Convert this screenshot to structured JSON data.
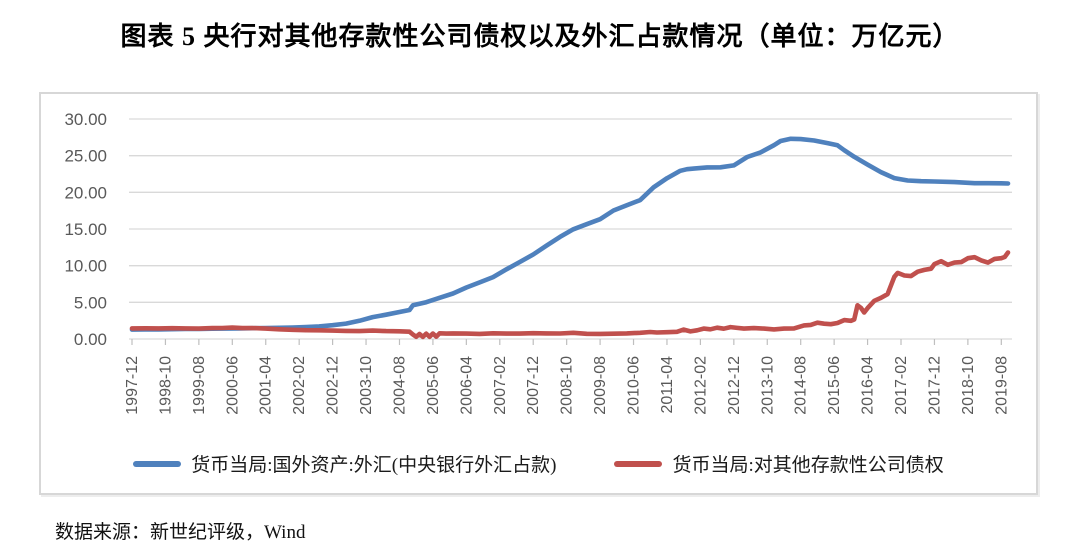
{
  "title": "图表 5  央行对其他存款性公司债权以及外汇占款情况（单位：万亿元）",
  "source_note": "数据来源：新世纪评级，Wind",
  "chart_data": {
    "type": "line",
    "title": "央行对其他存款性公司债权以及外汇占款情况",
    "unit": "万亿元",
    "grid": true,
    "legend_position": "bottom",
    "colors": {
      "grid": "#d9d9d9",
      "axis": "#bfbfbf",
      "tick_text": "#595959",
      "border": "#d7d7d7",
      "background": "#ffffff"
    },
    "y_axis": {
      "min": 0,
      "max": 30,
      "step": 5,
      "tick_labels": [
        "0.00",
        "5.00",
        "10.00",
        "15.00",
        "20.00",
        "25.00",
        "30.00"
      ]
    },
    "x_axis": {
      "start": "1997-12",
      "end": "2019-10",
      "tick_interval_months": 10,
      "label_rotation": -90,
      "tick_labels": [
        "1997-12",
        "1998-10",
        "1999-08",
        "2000-06",
        "2001-04",
        "2002-02",
        "2002-12",
        "2003-10",
        "2004-08",
        "2005-06",
        "2006-04",
        "2007-02",
        "2007-12",
        "2008-10",
        "2009-08",
        "2010-06",
        "2011-04",
        "2012-02",
        "2012-12",
        "2013-10",
        "2014-08",
        "2015-06",
        "2016-04",
        "2017-02",
        "2017-12",
        "2018-10",
        "2019-08"
      ]
    },
    "series": [
      {
        "name": "货币当局:国外资产:外汇(中央银行外汇占款)",
        "color": "#4F81BD",
        "points": [
          [
            "1997-12",
            1.28
          ],
          [
            "1998-04",
            1.3
          ],
          [
            "1998-08",
            1.31
          ],
          [
            "1998-12",
            1.34
          ],
          [
            "1999-04",
            1.36
          ],
          [
            "1999-08",
            1.38
          ],
          [
            "1999-12",
            1.41
          ],
          [
            "2000-04",
            1.42
          ],
          [
            "2000-08",
            1.44
          ],
          [
            "2000-12",
            1.47
          ],
          [
            "2001-04",
            1.5
          ],
          [
            "2001-08",
            1.53
          ],
          [
            "2001-12",
            1.57
          ],
          [
            "2002-04",
            1.63
          ],
          [
            "2002-08",
            1.72
          ],
          [
            "2002-12",
            1.88
          ],
          [
            "2003-04",
            2.1
          ],
          [
            "2003-08",
            2.48
          ],
          [
            "2003-12",
            2.98
          ],
          [
            "2004-04",
            3.32
          ],
          [
            "2004-08",
            3.68
          ],
          [
            "2004-11",
            3.95
          ],
          [
            "2004-12",
            4.59
          ],
          [
            "2005-04",
            5.02
          ],
          [
            "2005-08",
            5.62
          ],
          [
            "2005-12",
            6.21
          ],
          [
            "2006-04",
            7.02
          ],
          [
            "2006-08",
            7.72
          ],
          [
            "2006-12",
            8.44
          ],
          [
            "2007-04",
            9.5
          ],
          [
            "2007-08",
            10.5
          ],
          [
            "2007-12",
            11.52
          ],
          [
            "2008-04",
            12.73
          ],
          [
            "2008-08",
            13.92
          ],
          [
            "2008-12",
            14.96
          ],
          [
            "2009-04",
            15.65
          ],
          [
            "2009-08",
            16.34
          ],
          [
            "2009-12",
            17.52
          ],
          [
            "2010-04",
            18.24
          ],
          [
            "2010-08",
            18.94
          ],
          [
            "2010-12",
            20.68
          ],
          [
            "2011-04",
            21.93
          ],
          [
            "2011-08",
            22.93
          ],
          [
            "2011-10",
            23.16
          ],
          [
            "2011-12",
            23.24
          ],
          [
            "2012-04",
            23.4
          ],
          [
            "2012-08",
            23.42
          ],
          [
            "2012-12",
            23.67
          ],
          [
            "2013-04",
            24.82
          ],
          [
            "2013-08",
            25.45
          ],
          [
            "2013-12",
            26.43
          ],
          [
            "2014-02",
            27.0
          ],
          [
            "2014-05",
            27.3
          ],
          [
            "2014-08",
            27.26
          ],
          [
            "2014-12",
            27.07
          ],
          [
            "2015-04",
            26.72
          ],
          [
            "2015-07",
            26.41
          ],
          [
            "2015-09",
            25.75
          ],
          [
            "2015-12",
            24.85
          ],
          [
            "2016-04",
            23.78
          ],
          [
            "2016-08",
            22.76
          ],
          [
            "2016-12",
            21.94
          ],
          [
            "2017-04",
            21.62
          ],
          [
            "2017-08",
            21.52
          ],
          [
            "2017-12",
            21.48
          ],
          [
            "2018-06",
            21.4
          ],
          [
            "2018-12",
            21.25
          ],
          [
            "2019-04",
            21.25
          ],
          [
            "2019-08",
            21.23
          ],
          [
            "2019-10",
            21.2
          ]
        ]
      },
      {
        "name": "货币当局:对其他存款性公司债权",
        "color": "#C0504D",
        "points": [
          [
            "1997-12",
            1.44
          ],
          [
            "1998-04",
            1.46
          ],
          [
            "1998-08",
            1.45
          ],
          [
            "1998-12",
            1.47
          ],
          [
            "1999-04",
            1.44
          ],
          [
            "1999-08",
            1.42
          ],
          [
            "1999-12",
            1.48
          ],
          [
            "2000-03",
            1.5
          ],
          [
            "2000-06",
            1.56
          ],
          [
            "2000-09",
            1.48
          ],
          [
            "2000-12",
            1.5
          ],
          [
            "2001-04",
            1.42
          ],
          [
            "2001-08",
            1.32
          ],
          [
            "2001-12",
            1.25
          ],
          [
            "2002-04",
            1.2
          ],
          [
            "2002-08",
            1.18
          ],
          [
            "2002-12",
            1.15
          ],
          [
            "2003-04",
            1.1
          ],
          [
            "2003-08",
            1.08
          ],
          [
            "2003-12",
            1.14
          ],
          [
            "2004-04",
            1.08
          ],
          [
            "2004-08",
            1.05
          ],
          [
            "2004-11",
            1.0
          ],
          [
            "2004-12",
            0.62
          ],
          [
            "2005-01",
            0.3
          ],
          [
            "2005-02",
            0.68
          ],
          [
            "2005-03",
            0.28
          ],
          [
            "2005-04",
            0.72
          ],
          [
            "2005-05",
            0.3
          ],
          [
            "2005-06",
            0.75
          ],
          [
            "2005-07",
            0.32
          ],
          [
            "2005-08",
            0.78
          ],
          [
            "2005-10",
            0.74
          ],
          [
            "2005-12",
            0.76
          ],
          [
            "2006-04",
            0.73
          ],
          [
            "2006-08",
            0.7
          ],
          [
            "2006-12",
            0.78
          ],
          [
            "2007-04",
            0.74
          ],
          [
            "2007-08",
            0.73
          ],
          [
            "2007-12",
            0.79
          ],
          [
            "2008-04",
            0.76
          ],
          [
            "2008-08",
            0.75
          ],
          [
            "2008-12",
            0.84
          ],
          [
            "2009-04",
            0.71
          ],
          [
            "2009-08",
            0.7
          ],
          [
            "2009-12",
            0.72
          ],
          [
            "2010-04",
            0.76
          ],
          [
            "2010-08",
            0.85
          ],
          [
            "2010-11",
            0.95
          ],
          [
            "2011-01",
            0.88
          ],
          [
            "2011-04",
            0.93
          ],
          [
            "2011-07",
            0.98
          ],
          [
            "2011-09",
            1.28
          ],
          [
            "2011-11",
            1.04
          ],
          [
            "2012-01",
            1.18
          ],
          [
            "2012-03",
            1.42
          ],
          [
            "2012-05",
            1.32
          ],
          [
            "2012-07",
            1.54
          ],
          [
            "2012-09",
            1.4
          ],
          [
            "2012-11",
            1.62
          ],
          [
            "2013-01",
            1.52
          ],
          [
            "2013-03",
            1.42
          ],
          [
            "2013-06",
            1.48
          ],
          [
            "2013-09",
            1.42
          ],
          [
            "2013-12",
            1.31
          ],
          [
            "2014-03",
            1.42
          ],
          [
            "2014-06",
            1.44
          ],
          [
            "2014-09",
            1.85
          ],
          [
            "2014-11",
            1.92
          ],
          [
            "2015-01",
            2.22
          ],
          [
            "2015-03",
            2.08
          ],
          [
            "2015-05",
            2.02
          ],
          [
            "2015-07",
            2.18
          ],
          [
            "2015-09",
            2.58
          ],
          [
            "2015-11",
            2.48
          ],
          [
            "2015-12",
            2.66
          ],
          [
            "2016-01",
            4.6
          ],
          [
            "2016-02",
            4.25
          ],
          [
            "2016-03",
            3.62
          ],
          [
            "2016-04",
            4.22
          ],
          [
            "2016-06",
            5.21
          ],
          [
            "2016-08",
            5.6
          ],
          [
            "2016-10",
            6.12
          ],
          [
            "2016-12",
            8.47
          ],
          [
            "2017-01",
            9.02
          ],
          [
            "2017-03",
            8.66
          ],
          [
            "2017-05",
            8.58
          ],
          [
            "2017-07",
            9.18
          ],
          [
            "2017-09",
            9.42
          ],
          [
            "2017-11",
            9.58
          ],
          [
            "2017-12",
            10.22
          ],
          [
            "2018-02",
            10.61
          ],
          [
            "2018-04",
            10.12
          ],
          [
            "2018-06",
            10.42
          ],
          [
            "2018-08",
            10.48
          ],
          [
            "2018-10",
            11.02
          ],
          [
            "2018-12",
            11.15
          ],
          [
            "2019-02",
            10.72
          ],
          [
            "2019-04",
            10.42
          ],
          [
            "2019-06",
            10.92
          ],
          [
            "2019-08",
            11.02
          ],
          [
            "2019-09",
            11.18
          ],
          [
            "2019-10",
            11.8
          ]
        ]
      }
    ]
  }
}
